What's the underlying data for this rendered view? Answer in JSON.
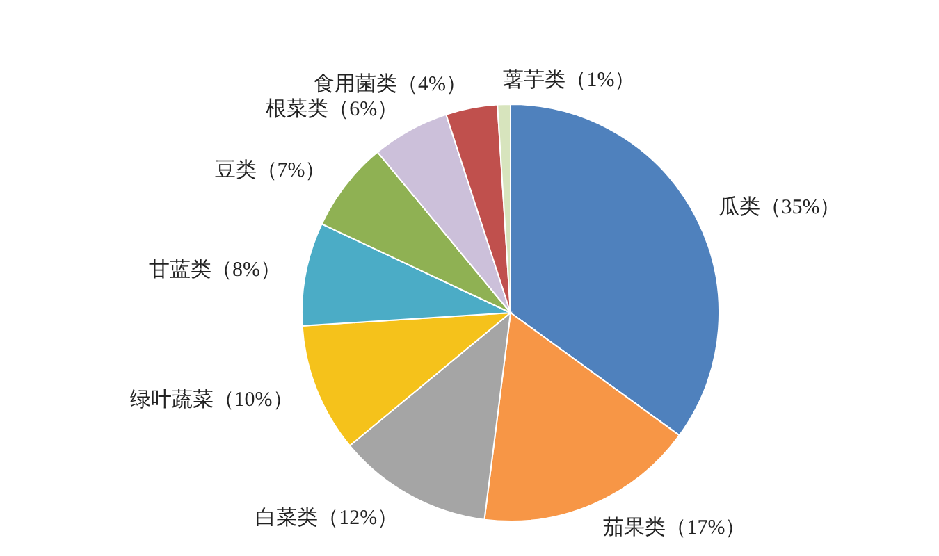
{
  "chart_data": {
    "type": "pie",
    "categories": [
      "瓜类（35%）",
      "茄果类（17%）",
      "白菜类（12%）",
      "绿叶蔬菜（10%）",
      "甘蓝类（8%）",
      "豆类（7%）",
      "根菜类（6%）",
      "食用菌类（4%）",
      "薯芋类（1%）"
    ],
    "values": [
      35,
      17,
      12,
      10,
      8,
      7,
      6,
      4,
      1
    ],
    "colors": [
      "#4f81bd",
      "#f79646",
      "#a5a5a5",
      "#f5c21b",
      "#4bacc6",
      "#8fb153",
      "#ccc0da",
      "#c0504d",
      "#d7e4bd"
    ]
  }
}
